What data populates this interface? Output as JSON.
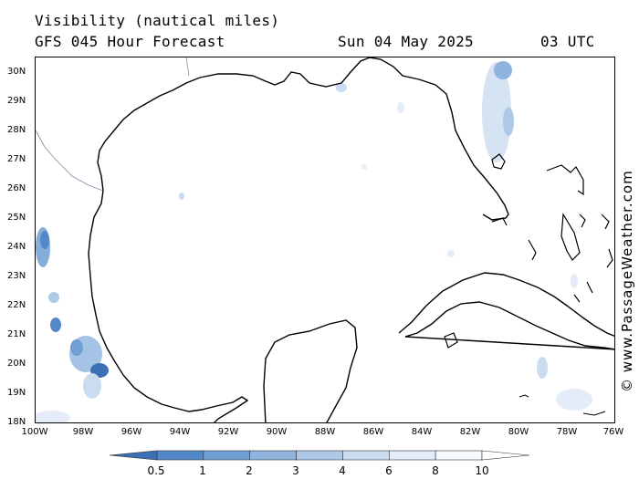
{
  "header": {
    "title": "Visibility (nautical miles)",
    "subtitle": "GFS 045 Hour Forecast",
    "date": "Sun 04 May 2025",
    "time": "03 UTC"
  },
  "map": {
    "lat_labels": [
      "30N",
      "29N",
      "28N",
      "27N",
      "26N",
      "25N",
      "24N",
      "23N",
      "22N",
      "21N",
      "20N",
      "19N",
      "18N"
    ],
    "lon_labels": [
      "100W",
      "98W",
      "96W",
      "94W",
      "92W",
      "90W",
      "88W",
      "86W",
      "84W",
      "82W",
      "80W",
      "78W",
      "76W"
    ]
  },
  "legend": {
    "labels": [
      "0.5",
      "1",
      "2",
      "3",
      "4",
      "6",
      "8",
      "10"
    ],
    "colors": [
      "#3b6fb6",
      "#5287c8",
      "#709fd4",
      "#8fb4de",
      "#aec9e8",
      "#cadcf0",
      "#e3ecf8",
      "#f6f9fd"
    ]
  },
  "credit": "© www.PassageWeather.com",
  "colors": {
    "coast": "#000000",
    "land_fill": "#ffffff",
    "sea_fill": "#ffffff",
    "border": "#7f8fa8"
  }
}
